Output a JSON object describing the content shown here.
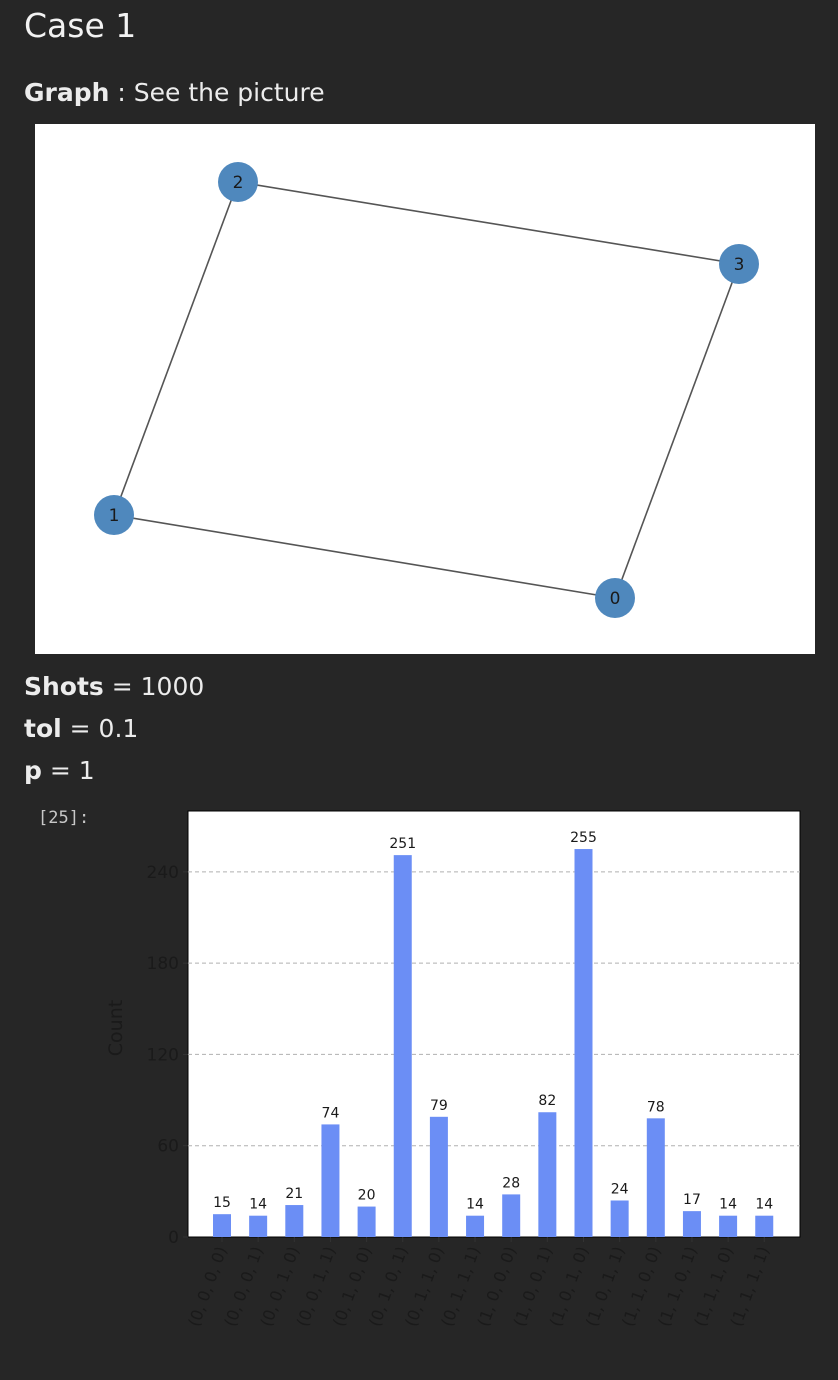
{
  "title": "Case 1",
  "graph_line": {
    "label": "Graph",
    "text": " : See the picture"
  },
  "params": {
    "shots": {
      "label": "Shots",
      "text": " = 1000"
    },
    "tol": {
      "label": "tol",
      "text": " = 0.1"
    },
    "p": {
      "label": "p",
      "text": " = 1"
    }
  },
  "cell_prompt": "[25]:",
  "graph": {
    "node_color": "#4f88bd",
    "edge_color": "#555555",
    "nodes": [
      "0",
      "1",
      "2",
      "3"
    ],
    "edges": [
      [
        "2",
        "3"
      ],
      [
        "2",
        "1"
      ],
      [
        "1",
        "0"
      ],
      [
        "0",
        "3"
      ]
    ]
  },
  "chart_data": {
    "type": "bar",
    "bar_color": "#6b8ef5",
    "ylabel": "Count",
    "ylim": [
      0,
      280
    ],
    "yticks": [
      0,
      60,
      120,
      180,
      240
    ],
    "grid": "dashed horizontal",
    "categories": [
      "(0, 0, 0, 0)",
      "(0, 0, 0, 1)",
      "(0, 0, 1, 0)",
      "(0, 0, 1, 1)",
      "(0, 1, 0, 0)",
      "(0, 1, 0, 1)",
      "(0, 1, 1, 0)",
      "(0, 1, 1, 1)",
      "(1, 0, 0, 0)",
      "(1, 0, 0, 1)",
      "(1, 0, 1, 0)",
      "(1, 0, 1, 1)",
      "(1, 1, 0, 0)",
      "(1, 1, 0, 1)",
      "(1, 1, 1, 0)",
      "(1, 1, 1, 1)"
    ],
    "values": [
      15,
      14,
      21,
      74,
      20,
      251,
      79,
      14,
      28,
      82,
      255,
      24,
      78,
      17,
      14,
      14
    ]
  }
}
